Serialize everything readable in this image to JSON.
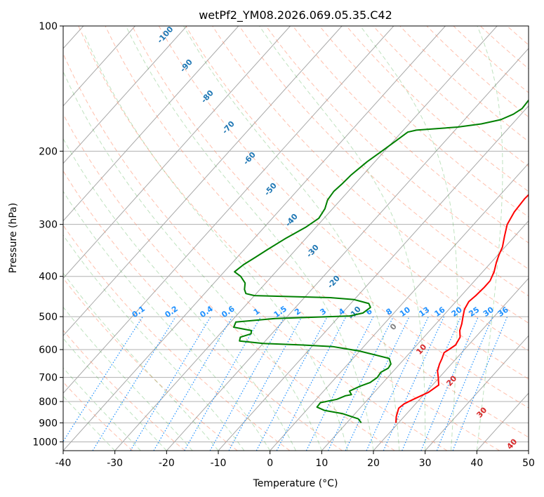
{
  "chart_data": {
    "type": "line",
    "title": "wetPf2_YM08.2026.069.05.35.C42",
    "xlabel": "Temperature (°C)",
    "ylabel": "Pressure (hPa)",
    "xlim": [
      -40,
      50
    ],
    "ylim": [
      1050,
      100
    ],
    "y_scale": "log",
    "x_ticks": [
      -40,
      -30,
      -20,
      -10,
      0,
      10,
      20,
      30,
      40,
      50
    ],
    "y_ticks": [
      1000,
      900,
      800,
      700,
      600,
      500,
      400,
      300,
      200,
      100
    ],
    "grid": true,
    "series": [
      {
        "role": "temperature",
        "color": "#ff0000",
        "points": [
          [
            19.5,
            900
          ],
          [
            18.5,
            870
          ],
          [
            17.5,
            830
          ],
          [
            17.8,
            810
          ],
          [
            18.8,
            790
          ],
          [
            20.5,
            760
          ],
          [
            21.2,
            730
          ],
          [
            19.8,
            700
          ],
          [
            18.5,
            675
          ],
          [
            17.7,
            650
          ],
          [
            17.2,
            630
          ],
          [
            16.6,
            610
          ],
          [
            17.0,
            600
          ],
          [
            17.5,
            585
          ],
          [
            17.0,
            560
          ],
          [
            15.8,
            540
          ],
          [
            15.0,
            520
          ],
          [
            14.0,
            500
          ],
          [
            13.0,
            480
          ],
          [
            12.5,
            460
          ],
          [
            12.8,
            445
          ],
          [
            13.0,
            425
          ],
          [
            13.0,
            410
          ],
          [
            12.2,
            390
          ],
          [
            11.0,
            370
          ],
          [
            10.2,
            355
          ],
          [
            9.5,
            340
          ],
          [
            8.0,
            320
          ],
          [
            6.5,
            300
          ],
          [
            5.7,
            280
          ],
          [
            5.4,
            260
          ],
          [
            5.7,
            240
          ],
          [
            6.7,
            220
          ],
          [
            8.5,
            205
          ],
          [
            9.0,
            195
          ],
          [
            8.9,
            185
          ],
          [
            8.5,
            170
          ],
          [
            8.2,
            155
          ],
          [
            7.5,
            140
          ],
          [
            6.5,
            130
          ],
          [
            6.0,
            120
          ],
          [
            6.3,
            112
          ],
          [
            7.0,
            105
          ],
          [
            7.5,
            100
          ]
        ]
      },
      {
        "role": "dewpoint",
        "color": "#008000",
        "points": [
          [
            12.8,
            900
          ],
          [
            11.5,
            880
          ],
          [
            7.5,
            855
          ],
          [
            3.5,
            840
          ],
          [
            1.5,
            825
          ],
          [
            1.4,
            805
          ],
          [
            4.0,
            790
          ],
          [
            5.0,
            775
          ],
          [
            6.0,
            770
          ],
          [
            5.0,
            755
          ],
          [
            6.2,
            735
          ],
          [
            7.5,
            720
          ],
          [
            8.0,
            700
          ],
          [
            7.8,
            680
          ],
          [
            8.5,
            665
          ],
          [
            8.3,
            650
          ],
          [
            7.0,
            630
          ],
          [
            0.0,
            605
          ],
          [
            -6.0,
            590
          ],
          [
            -12.0,
            585
          ],
          [
            -20.0,
            580
          ],
          [
            -25.0,
            572
          ],
          [
            -25.5,
            560
          ],
          [
            -24.0,
            550
          ],
          [
            -24.5,
            540
          ],
          [
            -28.5,
            530
          ],
          [
            -29.0,
            515
          ],
          [
            -22.0,
            505
          ],
          [
            -8.0,
            498
          ],
          [
            -6.0,
            490
          ],
          [
            -5.5,
            475
          ],
          [
            -6.5,
            465
          ],
          [
            -10.0,
            455
          ],
          [
            -15.0,
            450
          ],
          [
            -30.0,
            445
          ],
          [
            -32.0,
            440
          ],
          [
            -33.0,
            430
          ],
          [
            -34.0,
            415
          ],
          [
            -36.0,
            400
          ],
          [
            -38.0,
            390
          ],
          [
            -37.5,
            375
          ],
          [
            -36.5,
            360
          ],
          [
            -35.5,
            345
          ],
          [
            -34.0,
            325
          ],
          [
            -32.0,
            305
          ],
          [
            -31.0,
            290
          ],
          [
            -31.5,
            275
          ],
          [
            -32.5,
            262
          ],
          [
            -32.8,
            250
          ],
          [
            -32.5,
            240
          ],
          [
            -32.3,
            228
          ],
          [
            -31.5,
            212
          ],
          [
            -30.5,
            200
          ],
          [
            -29.5,
            188
          ],
          [
            -28.8,
            180
          ],
          [
            -27.5,
            178
          ],
          [
            -20.0,
            175
          ],
          [
            -16.0,
            172
          ],
          [
            -13.0,
            168
          ],
          [
            -11.5,
            163
          ],
          [
            -10.8,
            158
          ],
          [
            -11.0,
            150
          ],
          [
            -10.5,
            145
          ],
          [
            -9.5,
            140
          ],
          [
            -8.0,
            134
          ],
          [
            -6.0,
            128
          ],
          [
            -5.0,
            121
          ],
          [
            -3.0,
            113
          ],
          [
            -1.0,
            106
          ],
          [
            0.0,
            100
          ]
        ]
      }
    ],
    "dry_adiabat_color": "#ff8c69",
    "moist_adiabat_color": "#2ca02c",
    "mixing_ratio_color": "#1e90ff",
    "isotherm_color": "#808080",
    "annotations": {
      "height_labels_blue": [
        "-100",
        "-90",
        "-80",
        "-70",
        "-60",
        "-50",
        "-40",
        "-30",
        "-20",
        "-10"
      ],
      "mixing_ratio_labels": [
        "0.1",
        "0.2",
        "0.4",
        "0.6",
        "1",
        "1.5",
        "2",
        "3",
        "4",
        "6",
        "8",
        "10",
        "13",
        "16",
        "20",
        "25",
        "30",
        "36"
      ],
      "zero_label": "0",
      "red_labels": [
        "10",
        "20",
        "30",
        "40"
      ]
    }
  }
}
